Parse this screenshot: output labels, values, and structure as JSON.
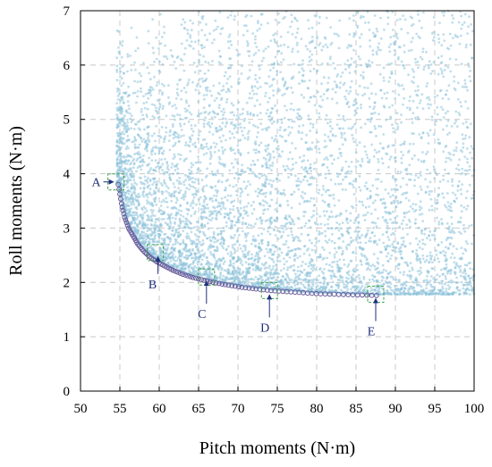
{
  "chart_data": {
    "type": "scatter",
    "xlabel": "Pitch moments (N·m)",
    "ylabel": "Roll moments (N·m)",
    "xlim": [
      50,
      100
    ],
    "ylim": [
      0,
      7
    ],
    "x_ticks": [
      "50",
      "55",
      "60",
      "65",
      "70",
      "75",
      "80",
      "85",
      "90",
      "95",
      "100"
    ],
    "y_ticks": [
      "0",
      "1",
      "2",
      "3",
      "4",
      "5",
      "6",
      "7"
    ],
    "grid": true,
    "colors": {
      "cloud": "#8ec3da",
      "front_stroke": "#6a5a9a",
      "box": "#3aa24a",
      "annotation": "#1f2f7a"
    },
    "series": [
      {
        "role": "sampled-solutions",
        "style": "light-blue dots",
        "x": [],
        "y": []
      },
      {
        "role": "pareto-front",
        "style": "purple open circles",
        "x": [
          54.8,
          55.2,
          55.6,
          56.1,
          56.7,
          57.3,
          58.0,
          58.8,
          59.7,
          60.7,
          61.8,
          63.0,
          64.3,
          65.7,
          67.2,
          68.8,
          70.5,
          72.3,
          74.2,
          76.2,
          78.3,
          80.5,
          82.8,
          85.2,
          87.6
        ],
        "y": [
          3.8,
          3.45,
          3.2,
          3.0,
          2.85,
          2.7,
          2.58,
          2.47,
          2.38,
          2.3,
          2.22,
          2.15,
          2.09,
          2.04,
          1.99,
          1.95,
          1.91,
          1.88,
          1.85,
          1.83,
          1.81,
          1.79,
          1.78,
          1.77,
          1.76
        ]
      }
    ],
    "annotations": [
      {
        "label": "A",
        "x": 54.5,
        "y": 3.85
      },
      {
        "label": "B",
        "x": 59.5,
        "y": 2.55
      },
      {
        "label": "C",
        "x": 66.0,
        "y": 2.1
      },
      {
        "label": "D",
        "x": 74.0,
        "y": 1.85
      },
      {
        "label": "E",
        "x": 87.5,
        "y": 1.78
      }
    ]
  }
}
